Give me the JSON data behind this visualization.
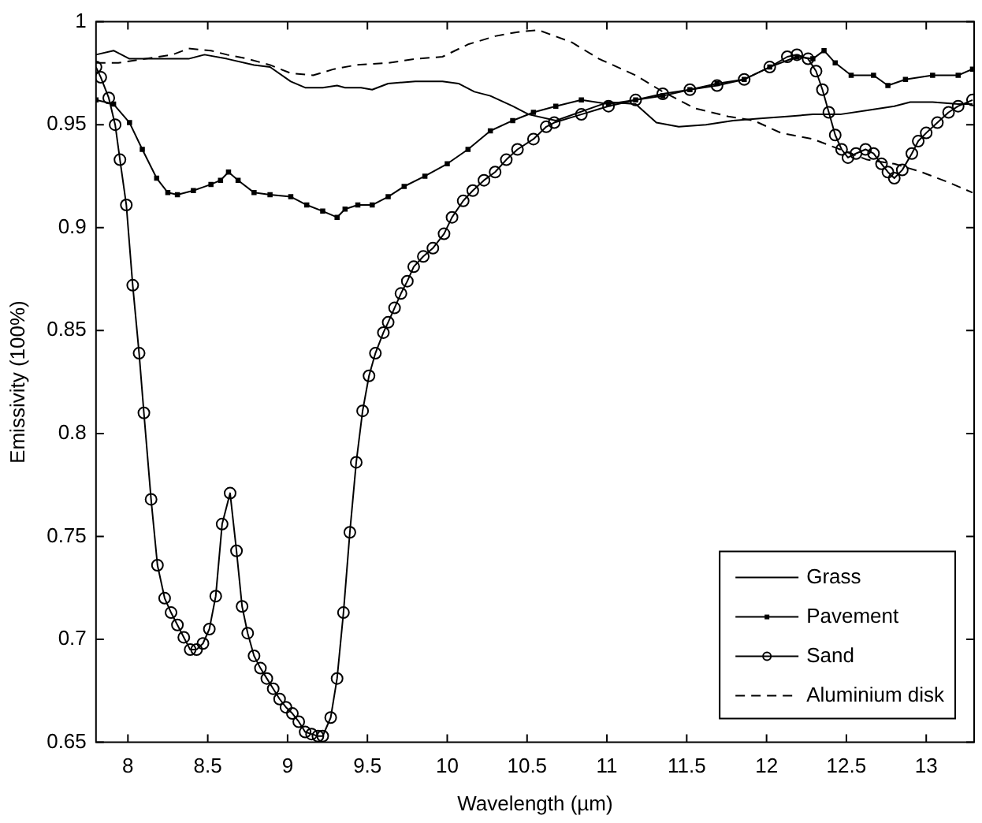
{
  "chart_data": {
    "type": "line",
    "xlabel": "Wavelength (µm)",
    "ylabel": "Emissivity (100%)",
    "xlim": [
      7.8,
      13.3
    ],
    "ylim": [
      0.65,
      1
    ],
    "xticks": [
      8,
      8.5,
      9,
      9.5,
      10,
      10.5,
      11,
      11.5,
      12,
      12.5,
      13
    ],
    "yticks": [
      0.65,
      0.7,
      0.75,
      0.8,
      0.85,
      0.9,
      0.95,
      1
    ],
    "grid": false,
    "legend": "bottom right",
    "series": [
      {
        "name": "Grass",
        "color": "#000000",
        "marker": "none",
        "line_style": "solid",
        "x": [
          7.8,
          7.91,
          8.01,
          8.15,
          8.38,
          8.48,
          8.62,
          8.79,
          8.89,
          9.02,
          9.11,
          9.22,
          9.31,
          9.36,
          9.46,
          9.53,
          9.63,
          9.8,
          9.97,
          10.07,
          10.17,
          10.27,
          10.41,
          10.51,
          10.68,
          11.01,
          11.18,
          11.31,
          11.45,
          11.62,
          11.79,
          11.96,
          12.13,
          12.29,
          12.46,
          12.63,
          12.8,
          12.9,
          13.04,
          13.2,
          13.29
        ],
        "values": [
          0.984,
          0.986,
          0.982,
          0.982,
          0.982,
          0.984,
          0.982,
          0.979,
          0.978,
          0.971,
          0.968,
          0.968,
          0.969,
          0.968,
          0.968,
          0.967,
          0.97,
          0.971,
          0.971,
          0.97,
          0.966,
          0.964,
          0.959,
          0.955,
          0.952,
          0.961,
          0.96,
          0.951,
          0.949,
          0.95,
          0.952,
          0.953,
          0.954,
          0.955,
          0.955,
          0.957,
          0.959,
          0.961,
          0.961,
          0.96,
          0.96
        ]
      },
      {
        "name": "Pavement",
        "color": "#000000",
        "marker": "square",
        "line_style": "solid",
        "x": [
          7.8,
          7.91,
          8.01,
          8.09,
          8.18,
          8.25,
          8.31,
          8.41,
          8.52,
          8.58,
          8.63,
          8.69,
          8.79,
          8.89,
          9.02,
          9.12,
          9.22,
          9.31,
          9.36,
          9.44,
          9.53,
          9.63,
          9.73,
          9.86,
          10.0,
          10.13,
          10.27,
          10.41,
          10.54,
          10.68,
          10.84,
          11.01,
          11.18,
          11.35,
          11.52,
          11.69,
          11.86,
          12.02,
          12.19,
          12.29,
          12.36,
          12.43,
          12.53,
          12.67,
          12.76,
          12.87,
          13.04,
          13.2,
          13.29
        ],
        "values": [
          0.962,
          0.96,
          0.951,
          0.938,
          0.924,
          0.917,
          0.916,
          0.918,
          0.921,
          0.923,
          0.927,
          0.923,
          0.917,
          0.916,
          0.915,
          0.911,
          0.908,
          0.905,
          0.909,
          0.911,
          0.911,
          0.915,
          0.92,
          0.925,
          0.931,
          0.938,
          0.947,
          0.952,
          0.956,
          0.959,
          0.962,
          0.96,
          0.962,
          0.964,
          0.967,
          0.97,
          0.972,
          0.978,
          0.983,
          0.982,
          0.986,
          0.98,
          0.974,
          0.974,
          0.969,
          0.972,
          0.974,
          0.974,
          0.977
        ]
      },
      {
        "name": "Sand",
        "color": "#000000",
        "marker": "circle",
        "line_style": "solid",
        "x": [
          7.8,
          7.83,
          7.88,
          7.92,
          7.95,
          7.99,
          8.03,
          8.07,
          8.1,
          8.145,
          8.185,
          8.23,
          8.27,
          8.31,
          8.35,
          8.39,
          8.43,
          8.47,
          8.51,
          8.55,
          8.59,
          8.64,
          8.68,
          8.715,
          8.75,
          8.79,
          8.83,
          8.87,
          8.91,
          8.95,
          8.99,
          9.03,
          9.07,
          9.11,
          9.15,
          9.19,
          9.22,
          9.27,
          9.31,
          9.35,
          9.39,
          9.43,
          9.47,
          9.51,
          9.55,
          9.6,
          9.63,
          9.67,
          9.71,
          9.75,
          9.79,
          9.85,
          9.91,
          9.98,
          10.03,
          10.1,
          10.16,
          10.23,
          10.3,
          10.37,
          10.44,
          10.54,
          10.62,
          10.67,
          10.84,
          11.01,
          11.18,
          11.35,
          11.52,
          11.69,
          11.86,
          12.02,
          12.13,
          12.19,
          12.26,
          12.31,
          12.35,
          12.39,
          12.43,
          12.47,
          12.51,
          12.56,
          12.62,
          12.67,
          12.72,
          12.76,
          12.8,
          12.85,
          12.91,
          12.95,
          13.0,
          13.07,
          13.14,
          13.2,
          13.29
        ],
        "values": [
          0.978,
          0.973,
          0.963,
          0.95,
          0.933,
          0.911,
          0.872,
          0.839,
          0.81,
          0.768,
          0.736,
          0.72,
          0.713,
          0.707,
          0.701,
          0.695,
          0.695,
          0.698,
          0.705,
          0.721,
          0.756,
          0.771,
          0.743,
          0.716,
          0.703,
          0.692,
          0.686,
          0.681,
          0.676,
          0.671,
          0.667,
          0.664,
          0.66,
          0.655,
          0.654,
          0.653,
          0.653,
          0.662,
          0.681,
          0.713,
          0.752,
          0.786,
          0.811,
          0.828,
          0.839,
          0.849,
          0.854,
          0.861,
          0.868,
          0.874,
          0.881,
          0.886,
          0.89,
          0.897,
          0.905,
          0.913,
          0.918,
          0.923,
          0.927,
          0.933,
          0.938,
          0.943,
          0.949,
          0.951,
          0.955,
          0.959,
          0.962,
          0.965,
          0.967,
          0.969,
          0.972,
          0.978,
          0.983,
          0.984,
          0.982,
          0.976,
          0.967,
          0.956,
          0.945,
          0.938,
          0.934,
          0.936,
          0.938,
          0.936,
          0.931,
          0.927,
          0.924,
          0.928,
          0.936,
          0.942,
          0.946,
          0.951,
          0.956,
          0.959,
          0.962
        ]
      },
      {
        "name": "Aluminium disk",
        "color": "#000000",
        "marker": "none",
        "line_style": "dashed",
        "x": [
          7.8,
          7.94,
          8.11,
          8.28,
          8.38,
          8.52,
          8.62,
          8.75,
          8.89,
          9.02,
          9.16,
          9.29,
          9.43,
          9.63,
          9.8,
          9.97,
          10.13,
          10.3,
          10.44,
          10.57,
          10.78,
          10.95,
          11.18,
          11.35,
          11.55,
          11.76,
          11.92,
          12.09,
          12.29,
          12.46,
          12.63,
          12.8,
          12.97,
          13.14,
          13.29
        ],
        "values": [
          0.98,
          0.98,
          0.982,
          0.984,
          0.987,
          0.986,
          0.984,
          0.982,
          0.979,
          0.975,
          0.974,
          0.977,
          0.979,
          0.98,
          0.982,
          0.983,
          0.989,
          0.993,
          0.995,
          0.996,
          0.99,
          0.982,
          0.974,
          0.966,
          0.958,
          0.954,
          0.952,
          0.946,
          0.943,
          0.938,
          0.933,
          0.931,
          0.927,
          0.922,
          0.917
        ]
      }
    ]
  }
}
